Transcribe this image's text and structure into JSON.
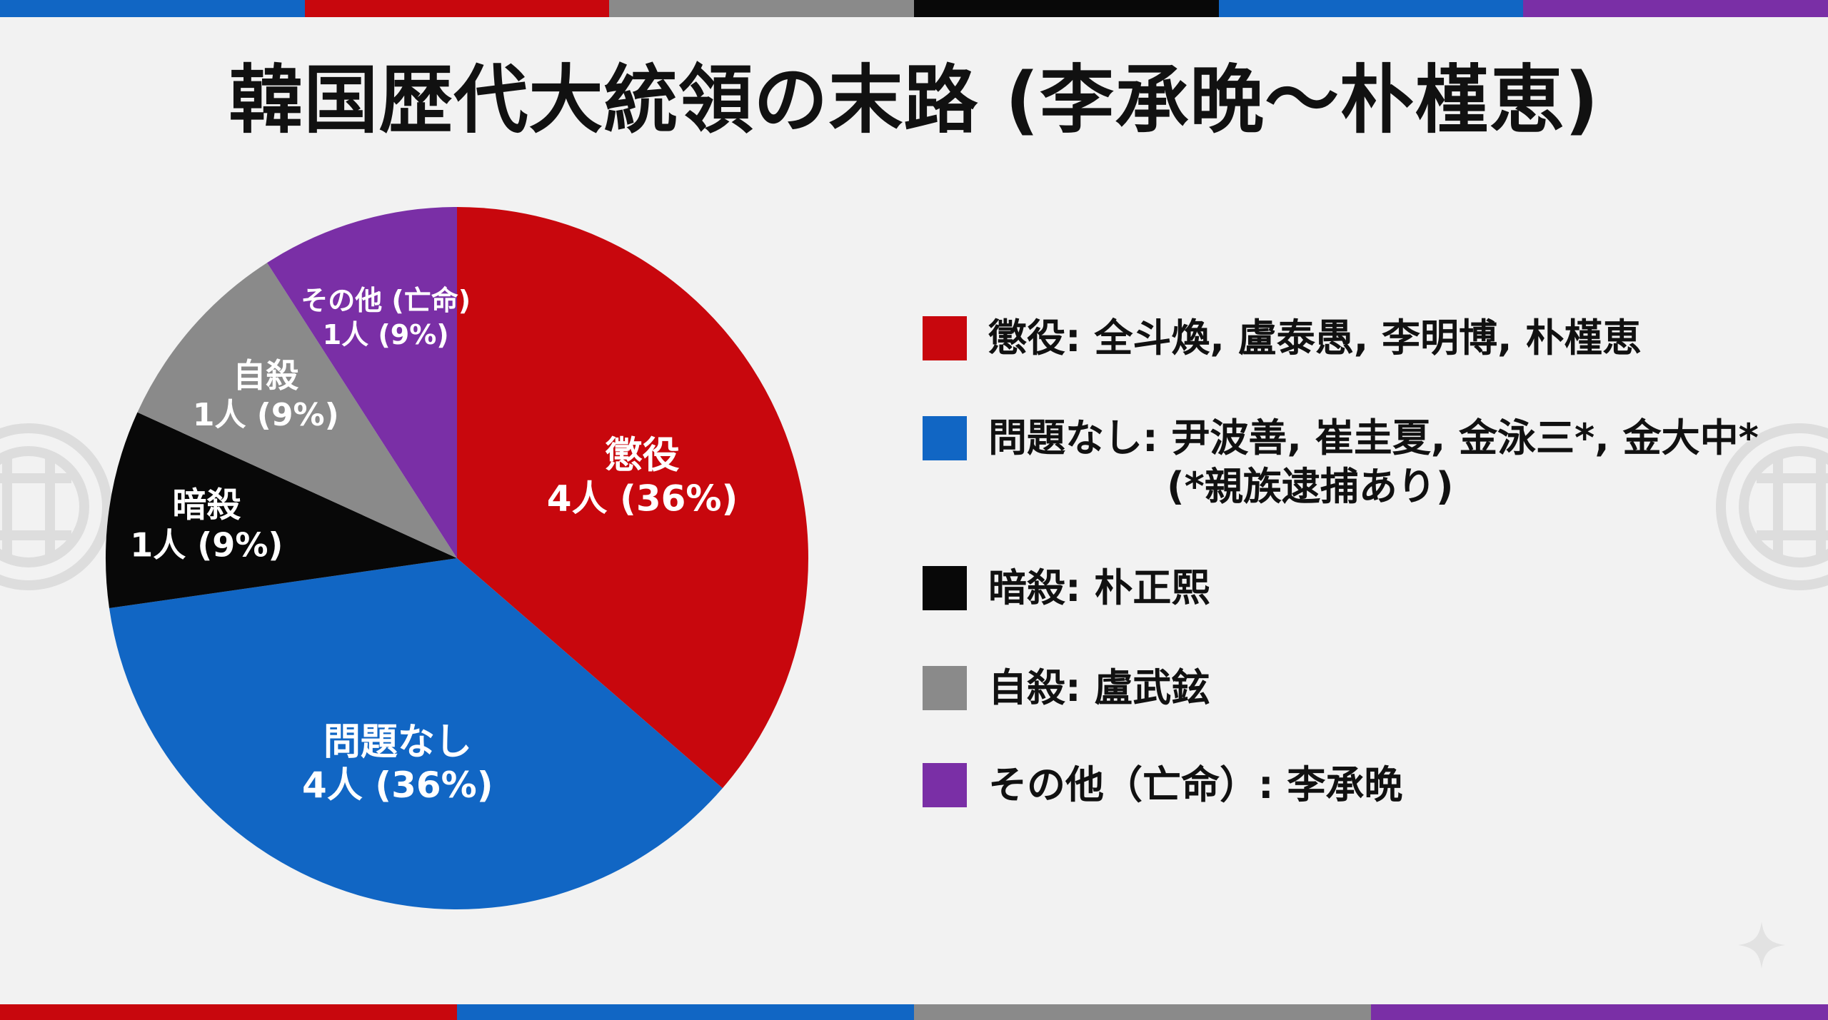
{
  "colors": {
    "red": "#c8070d",
    "blue": "#1166c4",
    "black": "#080808",
    "gray": "#8a8a8a",
    "purple": "#7a2fa6",
    "background": "#f2f2f2"
  },
  "icons": {
    "ornament": "chinese-knot-ornament-icon",
    "sparkle": "sparkle-icon"
  },
  "chart_data": {
    "type": "pie",
    "title": "韓国歴代大統領の末路 (李承晩～朴槿恵)",
    "slices": [
      {
        "name": "懲役",
        "count_label": "4人 (36%)",
        "value": 36,
        "color": "#c8070d"
      },
      {
        "name": "問題なし",
        "count_label": "4人 (36%)",
        "value": 36,
        "color": "#1166c4"
      },
      {
        "name": "暗殺",
        "count_label": "1人 (9%)",
        "value": 9,
        "color": "#080808"
      },
      {
        "name": "自殺",
        "count_label": "1人 (9%)",
        "value": 9,
        "color": "#8a8a8a"
      },
      {
        "name": "その他 (亡命)",
        "count_label": "1人 (9%)",
        "value": 9,
        "color": "#7a2fa6"
      }
    ],
    "legend": [
      {
        "text": "懲役: 全斗煥, 盧泰愚, 李明博, 朴槿恵",
        "color": "#c8070d"
      },
      {
        "text": "問題なし: 尹波善, 崔圭夏, 金泳三*, 金大中*",
        "note": "(*親族逮捕あり)",
        "color": "#1166c4"
      },
      {
        "text": "暗殺: 朴正熙",
        "color": "#080808"
      },
      {
        "text": "自殺: 盧武鉉",
        "color": "#8a8a8a"
      },
      {
        "text": "その他（亡命）: 李承晩",
        "color": "#7a2fa6"
      }
    ],
    "legend_position": "right"
  }
}
